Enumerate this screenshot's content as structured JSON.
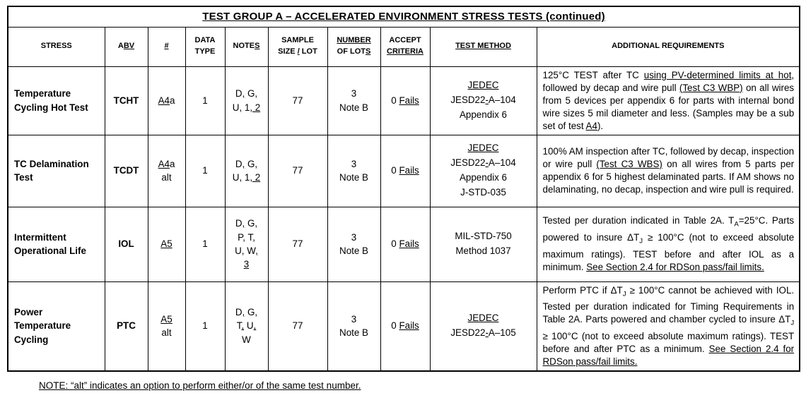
{
  "title_segments": [
    {
      "t": "TEST GROUP A – ACCELERATED ENVIRONMENT STRESS TESTS (continued)",
      "u": true
    }
  ],
  "columns": [
    {
      "id": "stress",
      "segments": [
        {
          "t": "STRESS"
        }
      ]
    },
    {
      "id": "abv",
      "segments": [
        {
          "t": "A"
        },
        {
          "t": "BV",
          "u": true
        }
      ]
    },
    {
      "id": "number",
      "segments": [
        {
          "t": "#",
          "u": true
        }
      ]
    },
    {
      "id": "data-type",
      "segments": [
        {
          "t": "DATA"
        },
        {
          "br": true
        },
        {
          "t": "TYPE"
        }
      ]
    },
    {
      "id": "notes",
      "segments": [
        {
          "t": "NOTE"
        },
        {
          "t": "S",
          "u": true
        }
      ]
    },
    {
      "id": "sample-size",
      "segments": [
        {
          "t": "SAMPLE"
        },
        {
          "br": true
        },
        {
          "t": "SIZE "
        },
        {
          "t": "/",
          "u": true
        },
        {
          "t": " LOT"
        }
      ]
    },
    {
      "id": "number-of-lots",
      "segments": [
        {
          "t": "NUMBER",
          "u": true
        },
        {
          "br": true
        },
        {
          "t": "OF LOT"
        },
        {
          "t": "S",
          "u": true
        }
      ]
    },
    {
      "id": "accept-criteria",
      "segments": [
        {
          "t": "ACCEPT"
        },
        {
          "br": true
        },
        {
          "t": "CRITERIA",
          "u": true
        }
      ]
    },
    {
      "id": "test-method",
      "segments": [
        {
          "t": "TEST METHOD",
          "u": true
        }
      ]
    },
    {
      "id": "additional-requirements",
      "segments": [
        {
          "t": "ADDITIONAL REQUIREMENTS"
        }
      ]
    }
  ],
  "rows": [
    {
      "stress": "Temperature Cycling Hot Test",
      "abv": "TCHT",
      "test_number": [
        {
          "t": "A4",
          "u": true
        },
        {
          "t": "a"
        }
      ],
      "data_type": "1",
      "notes": [
        {
          "t": "D"
        },
        {
          "t": ",",
          "u": true
        },
        {
          "t": " G"
        },
        {
          "t": ",",
          "u": true
        },
        {
          "br": true
        },
        {
          "t": "U"
        },
        {
          "t": ",",
          "u": true
        },
        {
          "t": " 1"
        },
        {
          "t": ", 2",
          "u": true
        }
      ],
      "sample_size": "77",
      "number_of_lots": [
        {
          "t": "3"
        },
        {
          "br": true
        },
        {
          "t": "Note B"
        }
      ],
      "accept_criteria": [
        {
          "t": "0 "
        },
        {
          "t": "Fails",
          "u": true
        }
      ],
      "test_method": [
        {
          "t": "JEDEC",
          "u": true
        },
        {
          "br": true
        },
        {
          "t": "JESD22"
        },
        {
          "t": "-",
          "u": true
        },
        {
          "t": "A–104"
        },
        {
          "br": true
        },
        {
          "t": "Appendix 6"
        }
      ],
      "additional_requirements": [
        {
          "t": "125°C TEST after TC "
        },
        {
          "t": "using PV-determined limits at hot",
          "u": true
        },
        {
          "t": ", followed by decap and wire pull "
        },
        {
          "t": "(Test C3 WBP)",
          "u": true
        },
        {
          "t": " on all wires from 5 devices per appendix 6 for parts with internal bond wire sizes 5 mil diameter and less. (Samples may be a sub set of test "
        },
        {
          "t": "A4",
          "u": true
        },
        {
          "t": ")."
        }
      ]
    },
    {
      "stress": "TC Delamination Test",
      "abv": "TCDT",
      "test_number": [
        {
          "t": "A4",
          "u": true
        },
        {
          "t": "a"
        },
        {
          "br": true
        },
        {
          "t": "alt"
        }
      ],
      "data_type": "1",
      "notes": [
        {
          "t": "D"
        },
        {
          "t": ",",
          "u": true
        },
        {
          "t": " G"
        },
        {
          "t": ",",
          "u": true
        },
        {
          "br": true
        },
        {
          "t": "U"
        },
        {
          "t": ",",
          "u": true
        },
        {
          "t": " 1"
        },
        {
          "t": ", 2",
          "u": true
        }
      ],
      "sample_size": "77",
      "number_of_lots": [
        {
          "t": "3"
        },
        {
          "br": true
        },
        {
          "t": "Note B"
        }
      ],
      "accept_criteria": [
        {
          "t": "0 "
        },
        {
          "t": "Fails",
          "u": true
        }
      ],
      "test_method": [
        {
          "t": "JEDEC",
          "u": true
        },
        {
          "br": true
        },
        {
          "t": "JESD22"
        },
        {
          "t": "-",
          "u": true
        },
        {
          "t": "A–104"
        },
        {
          "br": true
        },
        {
          "t": "Appendix 6"
        },
        {
          "br": true
        },
        {
          "t": "J-STD-035"
        }
      ],
      "additional_requirements": [
        {
          "t": "100% AM inspection after TC, followed by decap, inspection or wire pull "
        },
        {
          "t": "(Test C3 WBS)",
          "u": true
        },
        {
          "t": " on all wires from 5 parts per appendix 6 for 5 highest delaminated parts.  If AM shows no delaminating, no decap, inspection and wire pull is required."
        }
      ]
    },
    {
      "stress": "Intermittent Operational Life",
      "abv": "IOL",
      "test_number": [
        {
          "t": "A5",
          "u": true
        }
      ],
      "data_type": "1",
      "notes": [
        {
          "t": "D"
        },
        {
          "t": ",",
          "u": true
        },
        {
          "t": " G"
        },
        {
          "t": ",",
          "u": true
        },
        {
          "br": true
        },
        {
          "t": "P"
        },
        {
          "t": ",",
          "u": true
        },
        {
          "t": " T"
        },
        {
          "t": ",",
          "u": true
        },
        {
          "br": true
        },
        {
          "t": "U"
        },
        {
          "t": ",",
          "u": true
        },
        {
          "t": " W"
        },
        {
          "t": ",",
          "u": true
        },
        {
          "br": true
        },
        {
          "t": "3",
          "u": true
        }
      ],
      "sample_size": "77",
      "number_of_lots": [
        {
          "t": "3"
        },
        {
          "br": true
        },
        {
          "t": "Note B"
        }
      ],
      "accept_criteria": [
        {
          "t": "0 "
        },
        {
          "t": "Fails",
          "u": true
        }
      ],
      "test_method": [
        {
          "t": "MIL-STD-750"
        },
        {
          "br": true
        },
        {
          "t": "Method 1037"
        }
      ],
      "additional_requirements": [
        {
          "t": "Tested per duration indicated in Table 2A.  T"
        },
        {
          "t": "A",
          "sub": true
        },
        {
          "t": "=25°C. Parts powered to insure ΔT"
        },
        {
          "t": "J",
          "sub": true
        },
        {
          "t": " ≥ 100°C (not to exceed absolute maximum ratings).  TEST before and after IOL as a minimum. "
        },
        {
          "t": "See Section 2.4 for RDSon pass/fail limits.",
          "u": true
        }
      ]
    },
    {
      "stress": "Power Temperature Cycling",
      "abv": "PTC",
      "test_number": [
        {
          "t": "A5",
          "u": true
        },
        {
          "br": true
        },
        {
          "t": "alt"
        }
      ],
      "data_type": "1",
      "notes": [
        {
          "t": "D"
        },
        {
          "t": ",",
          "u": true
        },
        {
          "t": " G"
        },
        {
          "t": ",",
          "u": true
        },
        {
          "br": true
        },
        {
          "t": "T"
        },
        {
          "t": ",",
          "u": true
        },
        {
          "t": " U"
        },
        {
          "t": ",",
          "u": true
        },
        {
          "br": true
        },
        {
          "t": "W"
        }
      ],
      "sample_size": "77",
      "number_of_lots": [
        {
          "t": "3"
        },
        {
          "br": true
        },
        {
          "t": "Note B"
        }
      ],
      "accept_criteria": [
        {
          "t": "0 "
        },
        {
          "t": "Fails",
          "u": true
        }
      ],
      "test_method": [
        {
          "t": "JEDEC",
          "u": true
        },
        {
          "br": true
        },
        {
          "t": "JESD22"
        },
        {
          "t": "-",
          "u": true
        },
        {
          "t": "A–105"
        }
      ],
      "additional_requirements": [
        {
          "t": "Perform PTC if ΔT"
        },
        {
          "t": "J",
          "sub": true
        },
        {
          "t": " ≥ 100°C cannot be achieved with IOL.  Tested per duration indicated for Timing Requirements in Table 2A.  Parts powered and chamber cycled to insure ΔT"
        },
        {
          "t": "J",
          "sub": true
        },
        {
          "t": " ≥ 100°C (not to exceed absolute maximum ratings).  TEST before and after PTC as a minimum. "
        },
        {
          "t": "See Section 2.4 for RDSon pass/fail limits.",
          "u": true
        }
      ]
    }
  ],
  "footnote_segments": [
    {
      "t": "NOTE: “alt” indicates an option to perform either/or of the same test number.",
      "u": true
    }
  ]
}
